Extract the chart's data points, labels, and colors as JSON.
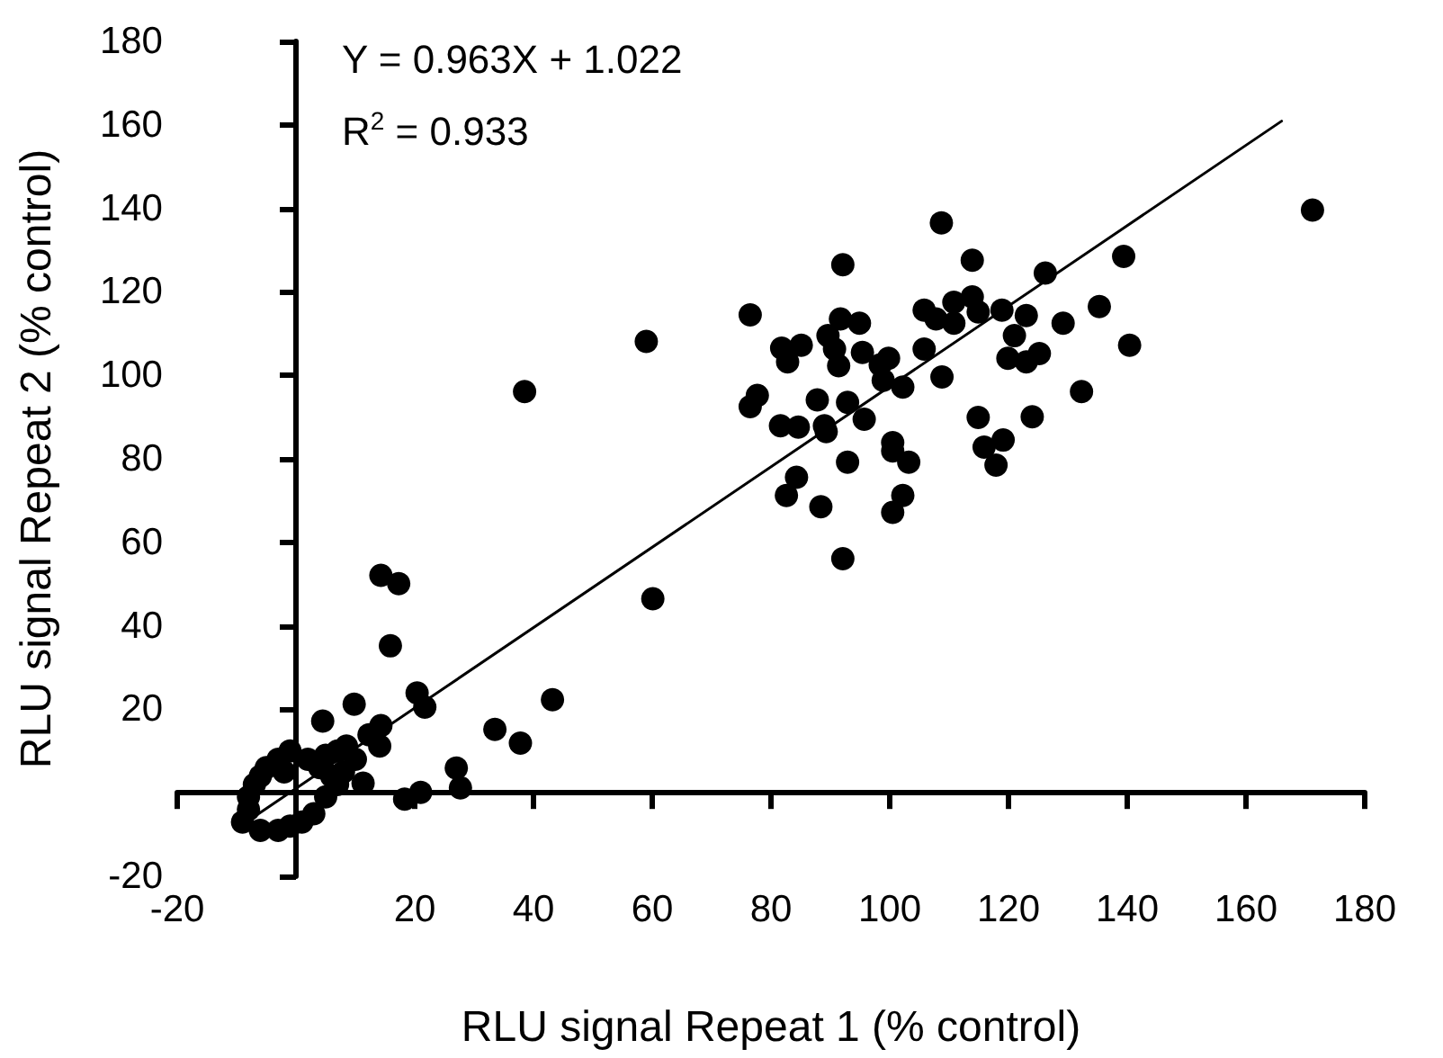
{
  "chart_data": {
    "type": "scatter",
    "xlabel": "RLU signal Repeat 1 (% control)",
    "ylabel": "RLU signal Repeat 2 (% control)",
    "annotations": [
      "Y = 0.963X + 1.022",
      "R$^{2}$ = 0.933"
    ],
    "xlim": [
      -20,
      180
    ],
    "ylim": [
      -20,
      180
    ],
    "xticks": [
      -20,
      20,
      40,
      60,
      80,
      100,
      120,
      140,
      160,
      180
    ],
    "yticks": [
      -20,
      20,
      40,
      60,
      80,
      100,
      120,
      140,
      160,
      180
    ],
    "grid": false,
    "marker": "circle",
    "series": [
      {
        "type": "scatter",
        "color": "#000000",
        "x": [
          171.2,
          108.7,
          92.1,
          113.9,
          126.2,
          139.4,
          76.5,
          135.3,
          140.4,
          129.2,
          91.7,
          94.9,
          105.8,
          107.8,
          110.8,
          113.9,
          114.9,
          110.8,
          118.9,
          123.0,
          121.0,
          119.9,
          123.0,
          125.2,
          132.3,
          124.0,
          114.9,
          119.1,
          115.9,
          117.9,
          81.8,
          85.1,
          82.8,
          89.6,
          90.7,
          91.4,
          95.4,
          99.8,
          98.4,
          105.8,
          98.9,
          102.2,
          108.8,
          77.7,
          76.5,
          87.8,
          92.9,
          95.7,
          81.6,
          84.6,
          89.0,
          89.3,
          100.5,
          100.5,
          103.2,
          92.9,
          84.3,
          82.6,
          88.4,
          102.2,
          100.5,
          92.1,
          38.5,
          59.0,
          60.1,
          14.3,
          17.3,
          15.9,
          4.5,
          9.8,
          20.4,
          21.7,
          14.3,
          12.3,
          14.1,
          8.5,
          43.2,
          33.5,
          37.8,
          27.0,
          27.7,
          21.0,
          18.3,
          11.3,
          -9,
          -8,
          -8,
          -7,
          -6,
          -5,
          -3,
          -3,
          -2,
          -1,
          2,
          4,
          5,
          5,
          6,
          7,
          7,
          -6,
          1,
          -1,
          3,
          8,
          10
        ],
        "values": [
          139.6,
          136.5,
          126.5,
          127.6,
          124.5,
          128.5,
          114.5,
          116.5,
          107.2,
          112.5,
          113.5,
          112.5,
          115.6,
          113.5,
          117.5,
          118.8,
          115.2,
          112.5,
          115.6,
          114.3,
          109.5,
          104.1,
          103.2,
          105.2,
          96.1,
          90.1,
          89.9,
          84.5,
          82.8,
          78.5,
          106.5,
          107.2,
          103.2,
          109.5,
          106.3,
          102.3,
          105.5,
          104.1,
          102.5,
          106.3,
          98.8,
          97.2,
          99.6,
          95.2,
          92.5,
          94.1,
          93.5,
          89.5,
          87.9,
          87.6,
          87.9,
          86.5,
          83.9,
          81.9,
          79.2,
          79.2,
          75.6,
          71.2,
          68.5,
          71.2,
          67.2,
          56.1,
          96.1,
          108.1,
          46.5,
          52.1,
          50.1,
          35.2,
          17.2,
          21.2,
          23.9,
          20.5,
          16.1,
          13.9,
          11.2,
          11.2,
          22.3,
          15.2,
          11.9,
          5.9,
          1.2,
          0.1,
          -1.5,
          2.3,
          -7,
          -4,
          -1,
          2,
          4,
          6,
          8,
          -9,
          5,
          10,
          8,
          6,
          9,
          -1,
          4,
          2,
          10,
          -9,
          -7,
          -8,
          -5,
          5,
          8
        ]
      },
      {
        "type": "line",
        "color": "#000000",
        "marker": "none",
        "line_style": "solid",
        "x": [
          -9.6,
          166
        ],
        "values": [
          -8.2,
          160.9
        ]
      }
    ]
  }
}
